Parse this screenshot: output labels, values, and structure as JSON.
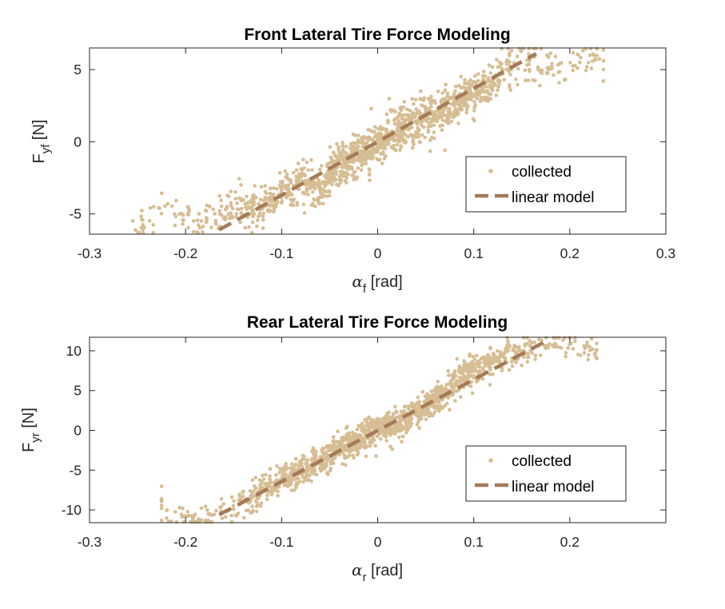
{
  "colors": {
    "collected": "#d6bd93",
    "linear_model": "#a57a57",
    "axis": "#262626",
    "background": "#ffffff"
  },
  "chart_data": [
    {
      "type": "scatter",
      "title": "Front Lateral Tire Force Modeling",
      "xlabel": {
        "symbol": "α",
        "subscript": "f",
        "unit": "[rad]"
      },
      "ylabel": {
        "symbol": "F",
        "subscript": "yf",
        "unit": "[N]"
      },
      "xlim": [
        -0.3,
        0.3
      ],
      "ylim": [
        -6.4,
        6.5
      ],
      "xticks": [
        -0.3,
        -0.2,
        -0.1,
        0,
        0.1,
        0.2,
        0.3
      ],
      "yticks": [
        -5,
        0,
        5
      ],
      "grid": false,
      "legend": {
        "placement": "lower-right",
        "entries": [
          "collected",
          "linear model"
        ]
      },
      "series": [
        {
          "name": "collected",
          "style": "points",
          "x_range": [
            -0.255,
            0.235
          ],
          "approx_trend": "tanh-shaped, y ≈ 6.0*tanh(4.2*x) with scatter ±1 N",
          "sample_points": [
            [
              -0.255,
              -6.2
            ],
            [
              -0.24,
              -5.5
            ],
            [
              -0.22,
              -4.6
            ],
            [
              -0.2,
              -5.2
            ],
            [
              -0.18,
              -5.6
            ],
            [
              -0.15,
              -4.3
            ],
            [
              -0.12,
              -4.6
            ],
            [
              -0.1,
              -3.8
            ],
            [
              -0.08,
              -2.6
            ],
            [
              -0.06,
              -3.4
            ],
            [
              -0.04,
              -1.6
            ],
            [
              -0.02,
              -1.0
            ],
            [
              0.0,
              0.0
            ],
            [
              0.02,
              0.9
            ],
            [
              0.04,
              1.3
            ],
            [
              0.06,
              2.1
            ],
            [
              0.08,
              2.6
            ],
            [
              0.1,
              3.5
            ],
            [
              0.12,
              4.3
            ],
            [
              0.14,
              5.4
            ],
            [
              0.16,
              5.6
            ],
            [
              0.18,
              4.9
            ],
            [
              0.2,
              5.3
            ],
            [
              0.22,
              5.7
            ],
            [
              0.235,
              5.8
            ]
          ]
        },
        {
          "name": "linear model",
          "style": "dashed-line",
          "x": [
            -0.165,
            0.165
          ],
          "y": [
            -6.1,
            6.1
          ]
        }
      ]
    },
    {
      "type": "scatter",
      "title": "Rear Lateral Tire Force Modeling",
      "xlabel": {
        "symbol": "α",
        "subscript": "r",
        "unit": "[rad]"
      },
      "ylabel": {
        "symbol": "F",
        "subscript": "yr",
        "unit": "[N]"
      },
      "xlim": [
        -0.3,
        0.3
      ],
      "ylim": [
        -11.6,
        11.7
      ],
      "xticks": [
        -0.3,
        -0.2,
        -0.1,
        0,
        0.1,
        0.2
      ],
      "yticks": [
        -10,
        -5,
        0,
        5,
        10
      ],
      "grid": false,
      "legend": {
        "placement": "lower-right",
        "entries": [
          "collected",
          "linear model"
        ]
      },
      "series": [
        {
          "name": "collected",
          "style": "points",
          "x_range": [
            -0.225,
            0.228
          ],
          "approx_trend": "nearly linear y ≈ 62*x, flattening near ±11 N, scatter ±1.2 N",
          "sample_points": [
            [
              -0.225,
              -9.2
            ],
            [
              -0.21,
              -10.8
            ],
            [
              -0.19,
              -11.0
            ],
            [
              -0.17,
              -10.4
            ],
            [
              -0.15,
              -9.6
            ],
            [
              -0.13,
              -8.2
            ],
            [
              -0.11,
              -7.0
            ],
            [
              -0.09,
              -5.6
            ],
            [
              -0.07,
              -4.4
            ],
            [
              -0.05,
              -3.0
            ],
            [
              -0.03,
              -1.8
            ],
            [
              -0.01,
              -0.6
            ],
            [
              0.01,
              0.5
            ],
            [
              0.03,
              1.4
            ],
            [
              0.05,
              2.9
            ],
            [
              0.07,
              4.6
            ],
            [
              0.09,
              6.9
            ],
            [
              0.11,
              8.4
            ],
            [
              0.13,
              9.4
            ],
            [
              0.15,
              10.1
            ],
            [
              0.17,
              10.6
            ],
            [
              0.19,
              10.8
            ],
            [
              0.21,
              10.7
            ],
            [
              0.228,
              10.1
            ]
          ]
        },
        {
          "name": "linear model",
          "style": "dashed-line",
          "x": [
            -0.165,
            0.175
          ],
          "y": [
            -10.6,
            11.2
          ]
        }
      ]
    }
  ]
}
